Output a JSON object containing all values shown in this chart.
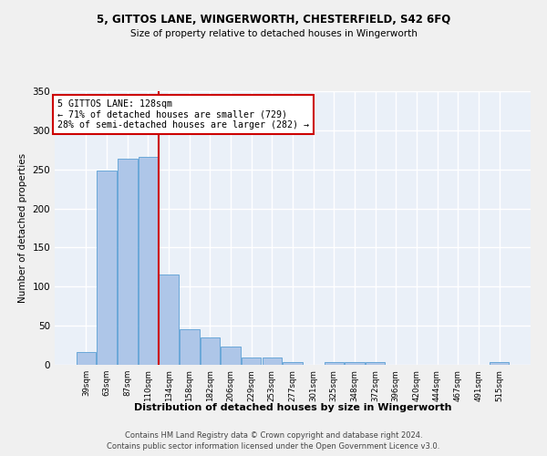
{
  "title1": "5, GITTOS LANE, WINGERWORTH, CHESTERFIELD, S42 6FQ",
  "title2": "Size of property relative to detached houses in Wingerworth",
  "xlabel": "Distribution of detached houses by size in Wingerworth",
  "ylabel": "Number of detached properties",
  "footnote1": "Contains HM Land Registry data © Crown copyright and database right 2024.",
  "footnote2": "Contains public sector information licensed under the Open Government Licence v3.0.",
  "annotation_line1": "5 GITTOS LANE: 128sqm",
  "annotation_line2": "← 71% of detached houses are smaller (729)",
  "annotation_line3": "28% of semi-detached houses are larger (282) →",
  "bar_categories": [
    "39sqm",
    "63sqm",
    "87sqm",
    "110sqm",
    "134sqm",
    "158sqm",
    "182sqm",
    "206sqm",
    "229sqm",
    "253sqm",
    "277sqm",
    "301sqm",
    "325sqm",
    "348sqm",
    "372sqm",
    "396sqm",
    "420sqm",
    "444sqm",
    "467sqm",
    "491sqm",
    "515sqm"
  ],
  "bar_values": [
    16,
    248,
    264,
    266,
    116,
    45,
    35,
    23,
    9,
    9,
    3,
    0,
    4,
    4,
    4,
    0,
    0,
    0,
    0,
    0,
    3
  ],
  "bar_color": "#aec6e8",
  "bar_edge_color": "#5a9fd4",
  "vline_color": "#cc0000",
  "vline_x_idx": 3.5,
  "annotation_box_color": "#cc0000",
  "background_color": "#eaf0f8",
  "grid_color": "#ffffff",
  "fig_background": "#f0f0f0",
  "ylim": [
    0,
    350
  ],
  "yticks": [
    0,
    50,
    100,
    150,
    200,
    250,
    300,
    350
  ]
}
